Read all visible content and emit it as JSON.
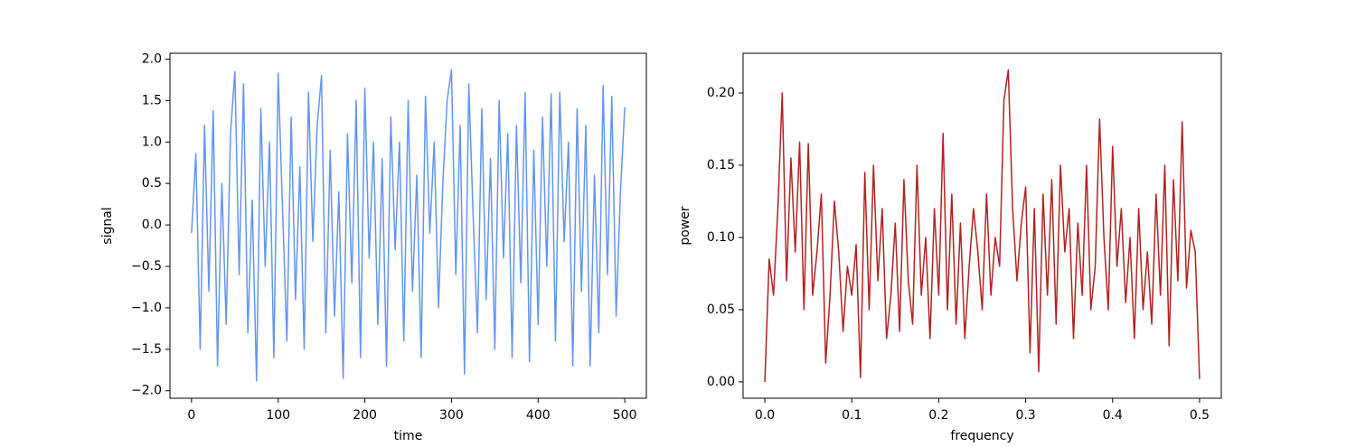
{
  "chart_data": [
    {
      "type": "line",
      "xlabel": "time",
      "ylabel": "signal",
      "color": "#6495ED",
      "x": [
        0,
        5,
        10,
        15,
        20,
        25,
        30,
        35,
        40,
        45,
        50,
        55,
        60,
        65,
        70,
        75,
        80,
        85,
        90,
        95,
        100,
        105,
        110,
        115,
        120,
        125,
        130,
        135,
        140,
        145,
        150,
        155,
        160,
        165,
        170,
        175,
        180,
        185,
        190,
        195,
        200,
        205,
        210,
        215,
        220,
        225,
        230,
        235,
        240,
        245,
        250,
        255,
        260,
        265,
        270,
        275,
        280,
        285,
        290,
        295,
        300,
        305,
        310,
        315,
        320,
        325,
        330,
        335,
        340,
        345,
        350,
        355,
        360,
        365,
        370,
        375,
        380,
        385,
        390,
        395,
        400,
        405,
        410,
        415,
        420,
        425,
        430,
        435,
        440,
        445,
        450,
        455,
        460,
        465,
        470,
        475,
        480,
        485,
        490,
        495,
        500
      ],
      "values": [
        -0.1,
        0.86,
        -1.5,
        1.2,
        -0.8,
        1.38,
        -1.7,
        0.5,
        -1.2,
        1.1,
        1.85,
        -0.6,
        1.7,
        -1.3,
        0.3,
        -1.88,
        1.4,
        -0.5,
        1.0,
        -1.6,
        1.83,
        0.2,
        -1.4,
        1.3,
        -0.9,
        0.7,
        -1.5,
        1.6,
        -0.2,
        1.2,
        1.8,
        -1.3,
        0.9,
        -1.1,
        0.4,
        -1.85,
        1.1,
        -0.7,
        1.5,
        -1.6,
        1.65,
        -0.4,
        1.0,
        -1.2,
        0.8,
        -1.7,
        1.3,
        -0.3,
        1.0,
        -1.4,
        1.5,
        -0.8,
        0.6,
        -1.6,
        1.55,
        -0.1,
        1.0,
        -1.0,
        0.5,
        1.5,
        1.87,
        -0.6,
        1.2,
        -1.8,
        1.7,
        0.1,
        -1.3,
        1.4,
        -0.9,
        0.8,
        -1.5,
        1.5,
        -0.4,
        1.1,
        -1.6,
        1.2,
        -0.7,
        1.6,
        -1.65,
        0.9,
        -1.2,
        1.3,
        -0.5,
        1.58,
        -1.4,
        1.6,
        -0.2,
        1.0,
        -1.7,
        1.4,
        -0.8,
        1.2,
        -1.7,
        0.6,
        -1.3,
        1.68,
        -0.6,
        1.55,
        -1.1,
        0.4,
        1.42
      ],
      "xlim": [
        -24.9,
        524.9
      ],
      "xticks": [
        0,
        100,
        200,
        300,
        400,
        500
      ],
      "ylim": [
        -2.09,
        2.07
      ],
      "yticks": [
        {
          "value": -2,
          "label": "−2.0"
        },
        {
          "value": -1.5,
          "label": "−1.5"
        },
        {
          "value": -1,
          "label": "−1.0"
        },
        {
          "value": -0.5,
          "label": "−0.5"
        },
        {
          "value": 0,
          "label": "0.0"
        },
        {
          "value": 0.5,
          "label": "0.5"
        },
        {
          "value": 1,
          "label": "1.0"
        },
        {
          "value": 1.5,
          "label": "1.5"
        },
        {
          "value": 2,
          "label": "2.0"
        }
      ]
    },
    {
      "type": "line",
      "xlabel": "frequency",
      "ylabel": "power",
      "color": "#B22222",
      "x": [
        0,
        0.005,
        0.01,
        0.015,
        0.02,
        0.025,
        0.03,
        0.035,
        0.04,
        0.045,
        0.05,
        0.055,
        0.06,
        0.065,
        0.07,
        0.075,
        0.08,
        0.085,
        0.09,
        0.095,
        0.1,
        0.105,
        0.11,
        0.115,
        0.12,
        0.125,
        0.13,
        0.135,
        0.14,
        0.145,
        0.15,
        0.155,
        0.16,
        0.165,
        0.17,
        0.175,
        0.18,
        0.185,
        0.19,
        0.195,
        0.2,
        0.205,
        0.21,
        0.215,
        0.22,
        0.225,
        0.23,
        0.235,
        0.24,
        0.245,
        0.25,
        0.255,
        0.26,
        0.265,
        0.27,
        0.275,
        0.28,
        0.285,
        0.29,
        0.295,
        0.3,
        0.305,
        0.31,
        0.315,
        0.32,
        0.325,
        0.33,
        0.335,
        0.34,
        0.345,
        0.35,
        0.355,
        0.36,
        0.365,
        0.37,
        0.375,
        0.38,
        0.385,
        0.39,
        0.395,
        0.4,
        0.405,
        0.41,
        0.415,
        0.42,
        0.425,
        0.43,
        0.435,
        0.44,
        0.445,
        0.45,
        0.455,
        0.46,
        0.465,
        0.47,
        0.475,
        0.48,
        0.485,
        0.49,
        0.495,
        0.5
      ],
      "values": [
        0.0,
        0.085,
        0.06,
        0.12,
        0.2,
        0.07,
        0.155,
        0.09,
        0.166,
        0.05,
        0.165,
        0.06,
        0.09,
        0.13,
        0.013,
        0.06,
        0.125,
        0.09,
        0.035,
        0.08,
        0.06,
        0.095,
        0.003,
        0.145,
        0.05,
        0.15,
        0.07,
        0.12,
        0.03,
        0.06,
        0.11,
        0.035,
        0.14,
        0.07,
        0.04,
        0.15,
        0.06,
        0.1,
        0.03,
        0.12,
        0.06,
        0.172,
        0.05,
        0.13,
        0.04,
        0.11,
        0.03,
        0.08,
        0.12,
        0.09,
        0.05,
        0.13,
        0.06,
        0.1,
        0.08,
        0.195,
        0.216,
        0.12,
        0.07,
        0.11,
        0.135,
        0.02,
        0.12,
        0.007,
        0.13,
        0.06,
        0.14,
        0.04,
        0.15,
        0.09,
        0.12,
        0.03,
        0.11,
        0.06,
        0.15,
        0.05,
        0.08,
        0.182,
        0.1,
        0.05,
        0.163,
        0.08,
        0.12,
        0.055,
        0.1,
        0.03,
        0.12,
        0.05,
        0.09,
        0.04,
        0.13,
        0.06,
        0.15,
        0.025,
        0.14,
        0.07,
        0.18,
        0.065,
        0.105,
        0.09,
        0.002
      ],
      "xlim": [
        -0.025,
        0.525
      ],
      "xticks": [
        {
          "value": 0,
          "label": "0.0"
        },
        0.1,
        0.2,
        0.3,
        0.4,
        0.5
      ],
      "ylim": [
        -0.0113,
        0.2275
      ],
      "yticks": [
        {
          "value": 0,
          "label": "0.00"
        },
        {
          "value": 0.05,
          "label": "0.05"
        },
        {
          "value": 0.1,
          "label": "0.10"
        },
        {
          "value": 0.15,
          "label": "0.15"
        },
        {
          "value": 0.2,
          "label": "0.20"
        }
      ]
    }
  ]
}
